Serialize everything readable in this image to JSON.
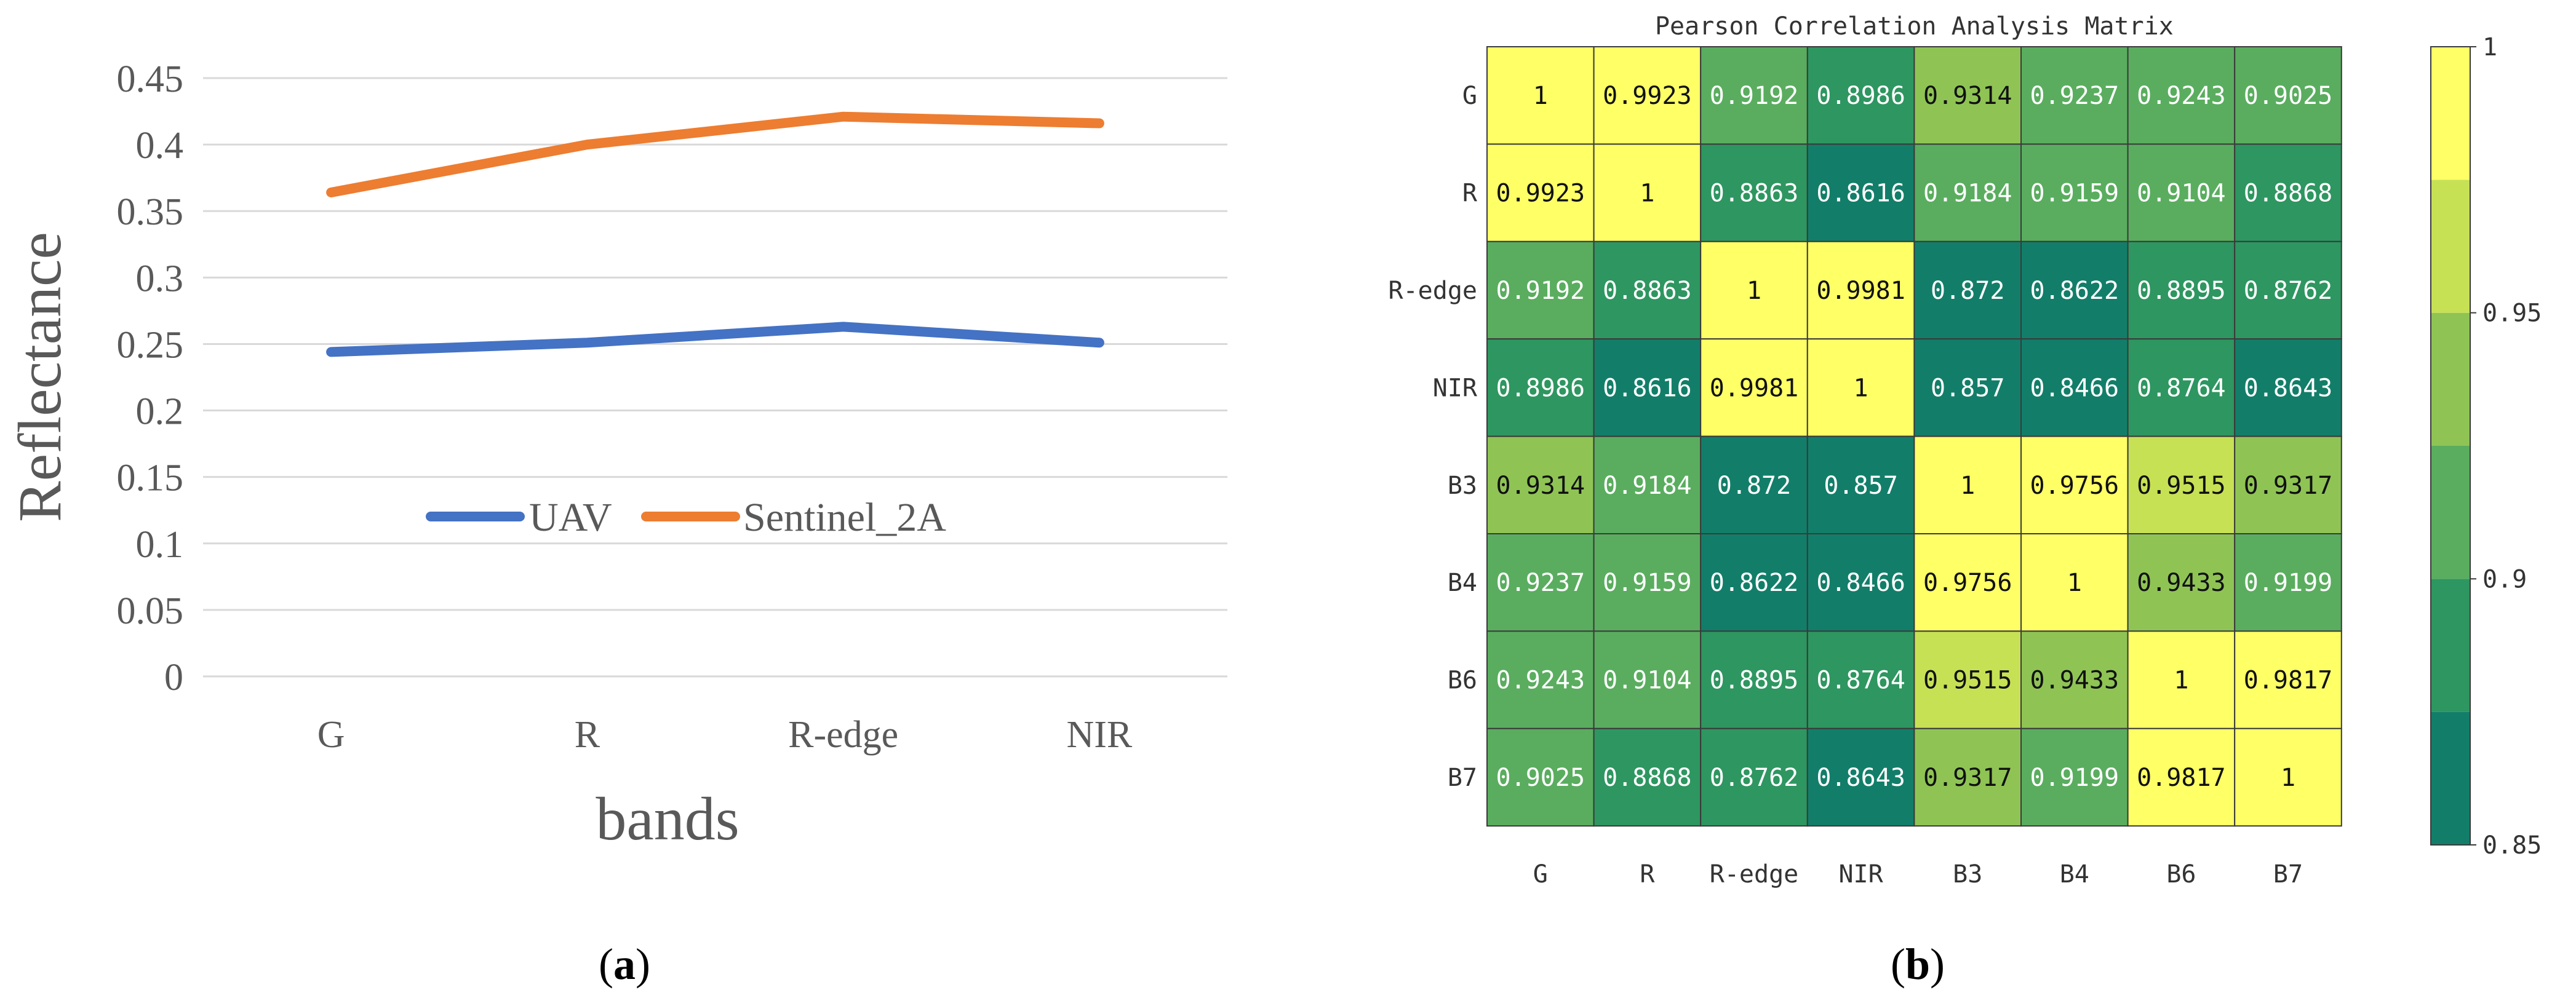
{
  "figure": {
    "panel_a_label": "a",
    "panel_b_label": "b"
  },
  "colors": {
    "uav": "#4472C4",
    "sentinel": "#ED7D31",
    "grid": "#D9D9D9",
    "axis_text": "#595959",
    "heat_scale": [
      "#127E69",
      "#2E9660",
      "#5AAD5F",
      "#8FC455",
      "#C7E155",
      "#FFFF66"
    ]
  },
  "chart_data": [
    {
      "type": "line",
      "title": "",
      "xlabel": "bands",
      "ylabel": "Reflectance",
      "categories": [
        "G",
        "R",
        "R-edge",
        "NIR"
      ],
      "ylim": [
        0,
        0.45
      ],
      "ytick_labels": [
        "0",
        "0.05",
        "0.1",
        "0.15",
        "0.2",
        "0.25",
        "0.3",
        "0.35",
        "0.4",
        "0.45"
      ],
      "ytick_values": [
        0,
        0.05,
        0.1,
        0.15,
        0.2,
        0.25,
        0.3,
        0.35,
        0.4,
        0.45
      ],
      "grid": true,
      "legend": "inside-center",
      "series": [
        {
          "name": "UAV",
          "values": [
            0.244,
            0.251,
            0.263,
            0.251
          ]
        },
        {
          "name": "Sentinel_2A",
          "values": [
            0.364,
            0.4,
            0.421,
            0.416
          ]
        }
      ]
    },
    {
      "type": "heatmap",
      "title": "Pearson Correlation Analysis Matrix",
      "row_labels": [
        "G",
        "R",
        "R-edge",
        "NIR",
        "B3",
        "B4",
        "B6",
        "B7"
      ],
      "col_labels": [
        "G",
        "R",
        "R-edge",
        "NIR",
        "B3",
        "B4",
        "B6",
        "B7"
      ],
      "matrix": [
        [
          "1",
          "0.9923",
          "0.9192",
          "0.8986",
          "0.9314",
          "0.9237",
          "0.9243",
          "0.9025"
        ],
        [
          "0.9923",
          "1",
          "0.8863",
          "0.8616",
          "0.9184",
          "0.9159",
          "0.9104",
          "0.8868"
        ],
        [
          "0.9192",
          "0.8863",
          "1",
          "0.9981",
          "0.872",
          "0.8622",
          "0.8895",
          "0.8762"
        ],
        [
          "0.8986",
          "0.8616",
          "0.9981",
          "1",
          "0.857",
          "0.8466",
          "0.8764",
          "0.8643"
        ],
        [
          "0.9314",
          "0.9184",
          "0.872",
          "0.857",
          "1",
          "0.9756",
          "0.9515",
          "0.9317"
        ],
        [
          "0.9237",
          "0.9159",
          "0.8622",
          "0.8466",
          "0.9756",
          "1",
          "0.9433",
          "0.9199"
        ],
        [
          "0.9243",
          "0.9104",
          "0.8895",
          "0.8764",
          "0.9515",
          "0.9433",
          "1",
          "0.9817"
        ],
        [
          "0.9025",
          "0.8868",
          "0.8762",
          "0.8643",
          "0.9317",
          "0.9199",
          "0.9817",
          "1"
        ]
      ],
      "colorbar": {
        "range": [
          0.85,
          1
        ],
        "bins": 6,
        "tick_labels": [
          "1",
          "0.95",
          "0.9",
          "0.85"
        ],
        "tick_values": [
          1,
          0.95,
          0.9,
          0.85
        ]
      }
    }
  ]
}
